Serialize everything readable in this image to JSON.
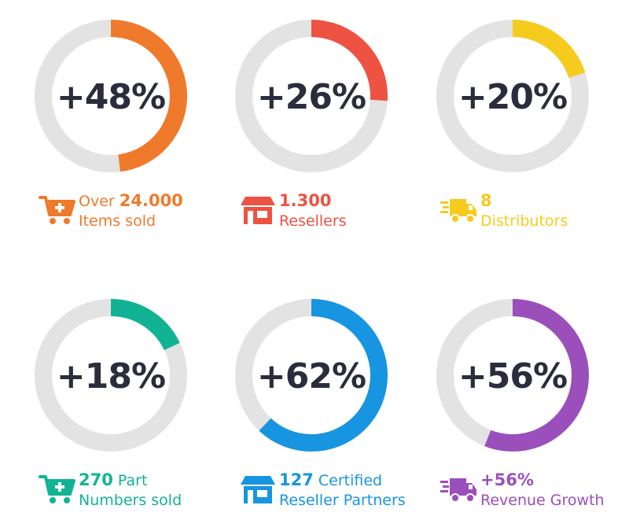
{
  "chart_data": [
    {
      "type": "pie",
      "label": "+48%",
      "value": 48,
      "color": "#f07a2c",
      "caption": {
        "pre": "Over",
        "highlight": "24.000",
        "line2": "Items sold"
      },
      "icon": "cart-plus-icon"
    },
    {
      "type": "pie",
      "label": "+26%",
      "value": 26,
      "color": "#ee5242",
      "caption": {
        "pre": "",
        "highlight": "1.300",
        "line2": "Resellers"
      },
      "icon": "store-icon"
    },
    {
      "type": "pie",
      "label": "+20%",
      "value": 20,
      "color": "#f5cb1e",
      "caption": {
        "pre": "",
        "highlight": "8",
        "line2": "Distributors"
      },
      "icon": "delivery-truck-icon"
    },
    {
      "type": "pie",
      "label": "+18%",
      "value": 18,
      "color": "#12b394",
      "caption": {
        "pre": "",
        "highlight": "270",
        "post": "Part",
        "line2": "Numbers sold"
      },
      "icon": "cart-plus-icon"
    },
    {
      "type": "pie",
      "label": "+62%",
      "value": 62,
      "color": "#1795e0",
      "caption": {
        "pre": "",
        "highlight": "127",
        "post": "Certified",
        "line2": "Reseller Partners"
      },
      "icon": "store-icon"
    },
    {
      "type": "pie",
      "label": "+56%",
      "value": 56,
      "color": "#9b4fbb",
      "caption": {
        "pre": "",
        "highlight": "+56%",
        "line2": "Revenue Growth"
      },
      "icon": "delivery-truck-icon"
    }
  ],
  "track_color": "#e3e3e3",
  "text_color": "#2a2d3b"
}
